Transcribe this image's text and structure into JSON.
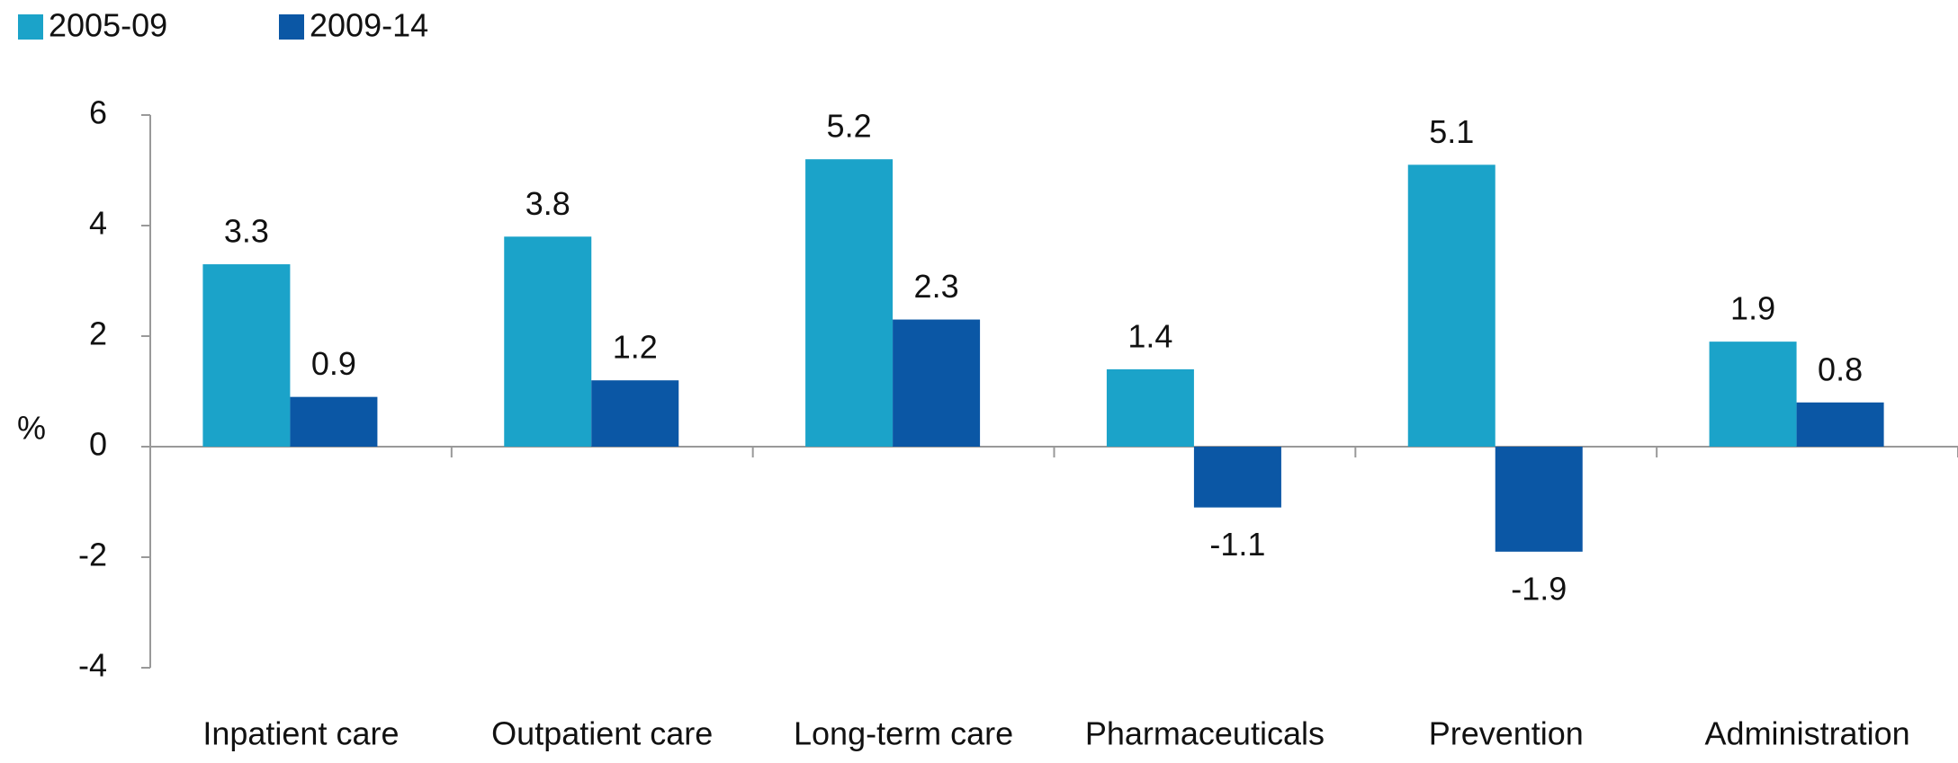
{
  "chart_data": {
    "type": "bar",
    "categories": [
      "Inpatient care",
      "Outpatient care",
      "Long-term care",
      "Pharmaceuticals",
      "Prevention",
      "Administration"
    ],
    "series": [
      {
        "name": "2005-09",
        "color": "#1ba3c9",
        "values": [
          3.3,
          3.8,
          5.2,
          1.4,
          5.1,
          1.9
        ]
      },
      {
        "name": "2009-14",
        "color": "#0b57a5",
        "values": [
          0.9,
          1.2,
          2.3,
          -1.1,
          -1.9,
          0.8
        ]
      }
    ],
    "y_label": "%",
    "ylim": [
      -4,
      6
    ],
    "yticks": [
      -4,
      -2,
      0,
      2,
      4,
      6
    ],
    "legend": "top-left"
  }
}
